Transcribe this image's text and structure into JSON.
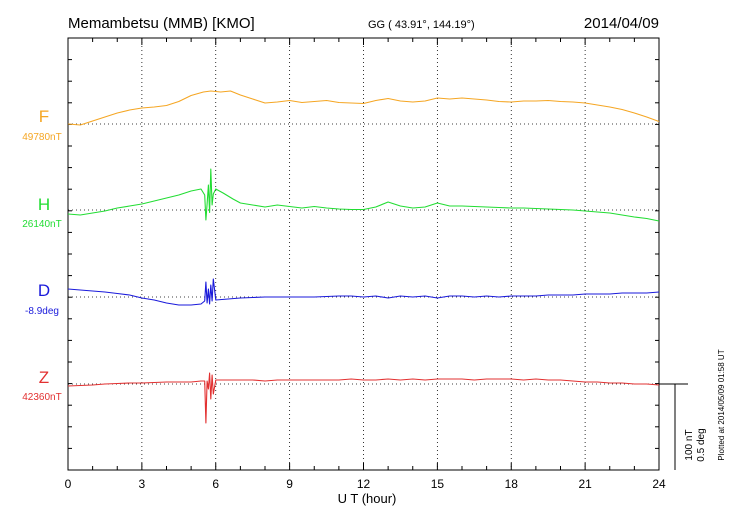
{
  "header": {
    "station": "Memambetsu (MMB)  [KMO]",
    "coords": "GG ( 43.91°, 144.19°)",
    "date": "2014/04/09"
  },
  "footer_note": "Plotted at 2014/05/09 01:58 UT",
  "scale_bar": {
    "line1": "100 nT",
    "line2": "0.5 deg"
  },
  "chart_data": {
    "type": "line",
    "xlabel": "U T (hour)",
    "xlim": [
      0,
      24
    ],
    "xticks": [
      0,
      3,
      6,
      9,
      12,
      15,
      18,
      21,
      24
    ],
    "grid": true,
    "series": [
      {
        "name": "F",
        "base_label": "49780nT",
        "color": "#f5a623",
        "points": [
          [
            0,
            0
          ],
          [
            0.5,
            -2
          ],
          [
            1,
            6
          ],
          [
            1.5,
            14
          ],
          [
            2,
            22
          ],
          [
            2.5,
            28
          ],
          [
            3,
            32
          ],
          [
            3.5,
            34
          ],
          [
            4,
            37
          ],
          [
            4.5,
            45
          ],
          [
            5,
            57
          ],
          [
            5.5,
            64
          ],
          [
            5.8,
            66
          ],
          [
            6.2,
            64
          ],
          [
            6.6,
            66
          ],
          [
            7,
            58
          ],
          [
            7.5,
            50
          ],
          [
            8,
            42
          ],
          [
            8.5,
            44
          ],
          [
            9,
            47
          ],
          [
            9.5,
            43
          ],
          [
            10,
            45
          ],
          [
            10.5,
            47
          ],
          [
            11,
            43
          ],
          [
            11.5,
            42
          ],
          [
            12,
            41
          ],
          [
            12.5,
            47
          ],
          [
            13,
            51
          ],
          [
            13.5,
            46
          ],
          [
            14,
            44
          ],
          [
            14.5,
            46
          ],
          [
            15,
            52
          ],
          [
            15.5,
            50
          ],
          [
            16,
            52
          ],
          [
            16.5,
            50
          ],
          [
            17,
            48
          ],
          [
            17.5,
            45
          ],
          [
            18,
            44
          ],
          [
            18.5,
            46
          ],
          [
            19,
            46
          ],
          [
            19.5,
            47
          ],
          [
            20,
            45
          ],
          [
            20.5,
            44
          ],
          [
            21,
            42
          ],
          [
            21.5,
            38
          ],
          [
            22,
            34
          ],
          [
            22.5,
            29
          ],
          [
            23,
            22
          ],
          [
            23.5,
            14
          ],
          [
            24,
            5
          ]
        ]
      },
      {
        "name": "H",
        "base_label": "26140nT",
        "color": "#22dd33",
        "points": [
          [
            0,
            -8
          ],
          [
            0.5,
            -10
          ],
          [
            1,
            -6
          ],
          [
            1.5,
            -2
          ],
          [
            2,
            4
          ],
          [
            2.5,
            8
          ],
          [
            3,
            12
          ],
          [
            3.5,
            18
          ],
          [
            4,
            24
          ],
          [
            4.5,
            30
          ],
          [
            5,
            38
          ],
          [
            5.4,
            42
          ],
          [
            5.55,
            30
          ],
          [
            5.6,
            -20
          ],
          [
            5.65,
            12
          ],
          [
            5.7,
            50
          ],
          [
            5.75,
            -5
          ],
          [
            5.8,
            82
          ],
          [
            5.85,
            10
          ],
          [
            5.9,
            32
          ],
          [
            6,
            42
          ],
          [
            6.3,
            34
          ],
          [
            6.7,
            22
          ],
          [
            7,
            14
          ],
          [
            7.5,
            10
          ],
          [
            8,
            6
          ],
          [
            8.5,
            10
          ],
          [
            9,
            7
          ],
          [
            9.5,
            4
          ],
          [
            10,
            7
          ],
          [
            10.5,
            4
          ],
          [
            11,
            2
          ],
          [
            11.5,
            1
          ],
          [
            12,
            1
          ],
          [
            12.5,
            6
          ],
          [
            13,
            16
          ],
          [
            13.5,
            8
          ],
          [
            14,
            4
          ],
          [
            14.5,
            6
          ],
          [
            15,
            14
          ],
          [
            15.5,
            8
          ],
          [
            16,
            8
          ],
          [
            16.5,
            7
          ],
          [
            17,
            6
          ],
          [
            17.5,
            5
          ],
          [
            18,
            4
          ],
          [
            18.5,
            4
          ],
          [
            19,
            3
          ],
          [
            19.5,
            2
          ],
          [
            20,
            1
          ],
          [
            20.5,
            0
          ],
          [
            21,
            -2
          ],
          [
            21.5,
            -4
          ],
          [
            22,
            -6
          ],
          [
            22.5,
            -10
          ],
          [
            23,
            -14
          ],
          [
            23.5,
            -17
          ],
          [
            24,
            -22
          ]
        ]
      },
      {
        "name": "D",
        "base_label": "-8.9deg",
        "color": "#1a1adb",
        "points": [
          [
            0,
            16
          ],
          [
            0.5,
            14
          ],
          [
            1,
            12
          ],
          [
            1.5,
            10
          ],
          [
            2,
            7
          ],
          [
            2.5,
            4
          ],
          [
            3,
            -2
          ],
          [
            3.5,
            -6
          ],
          [
            4,
            -12
          ],
          [
            4.5,
            -16
          ],
          [
            5,
            -16
          ],
          [
            5.4,
            -14
          ],
          [
            5.55,
            -8
          ],
          [
            5.6,
            30
          ],
          [
            5.65,
            -12
          ],
          [
            5.7,
            16
          ],
          [
            5.75,
            -14
          ],
          [
            5.8,
            24
          ],
          [
            5.85,
            -8
          ],
          [
            5.9,
            36
          ],
          [
            6,
            -6
          ],
          [
            6.5,
            -4
          ],
          [
            7,
            -2
          ],
          [
            7.5,
            -1
          ],
          [
            8,
            0
          ],
          [
            9,
            0
          ],
          [
            10,
            0
          ],
          [
            11,
            2
          ],
          [
            11.5,
            2
          ],
          [
            12,
            0
          ],
          [
            12.5,
            2
          ],
          [
            13,
            -2
          ],
          [
            13.5,
            2
          ],
          [
            14,
            0
          ],
          [
            14.5,
            2
          ],
          [
            15,
            -2
          ],
          [
            15.5,
            2
          ],
          [
            16,
            2
          ],
          [
            16.5,
            0
          ],
          [
            17,
            2
          ],
          [
            17.5,
            0
          ],
          [
            18,
            2
          ],
          [
            18.5,
            2
          ],
          [
            19,
            2
          ],
          [
            19.5,
            4
          ],
          [
            20,
            4
          ],
          [
            20.5,
            4
          ],
          [
            21,
            6
          ],
          [
            21.5,
            6
          ],
          [
            22,
            6
          ],
          [
            22.5,
            8
          ],
          [
            23,
            8
          ],
          [
            23.5,
            8
          ],
          [
            24,
            10
          ]
        ]
      },
      {
        "name": "Z",
        "base_label": "42360nT",
        "color": "#e23030",
        "points": [
          [
            0,
            -4
          ],
          [
            0.5,
            -3
          ],
          [
            1,
            -2
          ],
          [
            1.5,
            0
          ],
          [
            2,
            1
          ],
          [
            2.5,
            2
          ],
          [
            3,
            2
          ],
          [
            3.5,
            3
          ],
          [
            4,
            4
          ],
          [
            4.5,
            4
          ],
          [
            5,
            4
          ],
          [
            5.4,
            6
          ],
          [
            5.55,
            6
          ],
          [
            5.6,
            -78
          ],
          [
            5.65,
            6
          ],
          [
            5.7,
            -10
          ],
          [
            5.75,
            22
          ],
          [
            5.8,
            -30
          ],
          [
            5.85,
            18
          ],
          [
            5.9,
            -20
          ],
          [
            6,
            8
          ],
          [
            6.5,
            8
          ],
          [
            7,
            8
          ],
          [
            7.5,
            8
          ],
          [
            8,
            6
          ],
          [
            8.5,
            8
          ],
          [
            9,
            8
          ],
          [
            9.5,
            8
          ],
          [
            10,
            8
          ],
          [
            10.5,
            8
          ],
          [
            11,
            8
          ],
          [
            11.5,
            10
          ],
          [
            12,
            8
          ],
          [
            12.5,
            8
          ],
          [
            13,
            10
          ],
          [
            13.5,
            8
          ],
          [
            14,
            10
          ],
          [
            14.5,
            8
          ],
          [
            15,
            10
          ],
          [
            15.5,
            10
          ],
          [
            16,
            10
          ],
          [
            16.5,
            8
          ],
          [
            17,
            10
          ],
          [
            17.5,
            10
          ],
          [
            18,
            10
          ],
          [
            18.5,
            8
          ],
          [
            19,
            10
          ],
          [
            19.5,
            8
          ],
          [
            20,
            8
          ],
          [
            20.5,
            6
          ],
          [
            21,
            4
          ],
          [
            21.5,
            4
          ],
          [
            22,
            2
          ],
          [
            22.5,
            2
          ],
          [
            23,
            0
          ],
          [
            23.5,
            0
          ],
          [
            24,
            -2
          ]
        ]
      }
    ]
  }
}
